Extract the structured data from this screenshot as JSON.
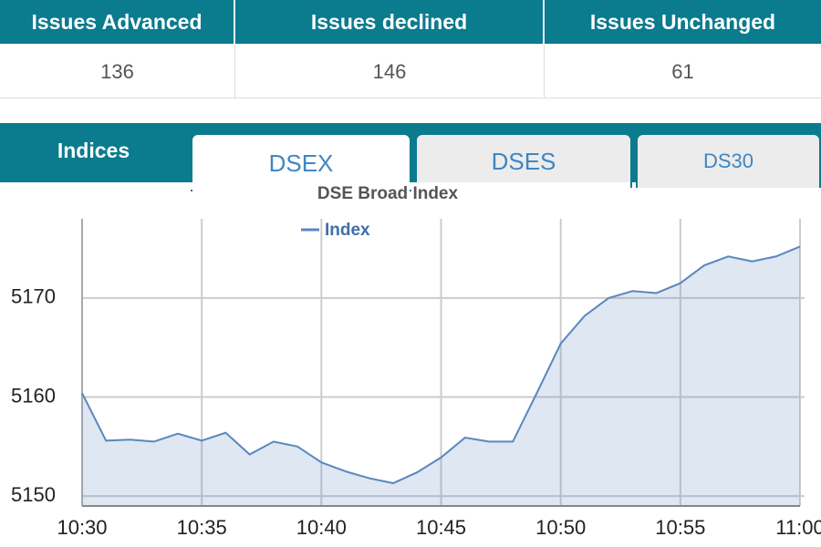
{
  "table": {
    "headers": [
      "Issues Advanced",
      "Issues declined",
      "Issues Unchanged"
    ],
    "values": [
      136,
      146,
      61
    ]
  },
  "tabs": {
    "label": "Indices",
    "items": [
      "DSEX",
      "DSES",
      "DS30"
    ]
  },
  "chart_data": {
    "type": "area",
    "title": "DSE Broad Index",
    "x": [
      "10:30",
      "10:31",
      "10:32",
      "10:33",
      "10:34",
      "10:35",
      "10:36",
      "10:37",
      "10:38",
      "10:39",
      "10:40",
      "10:41",
      "10:42",
      "10:43",
      "10:44",
      "10:45",
      "10:46",
      "10:47",
      "10:48",
      "10:49",
      "10:50",
      "10:51",
      "10:52",
      "10:53",
      "10:54",
      "10:55",
      "10:56",
      "10:57",
      "10:58",
      "10:59",
      "11:00"
    ],
    "series": [
      {
        "name": "Index",
        "color": "#5a87bd",
        "values": [
          5160.4,
          5155.6,
          5155.7,
          5155.5,
          5156.3,
          5155.6,
          5156.4,
          5154.2,
          5155.5,
          5155.0,
          5153.4,
          5152.5,
          5151.8,
          5151.3,
          5152.4,
          5153.9,
          5155.9,
          5155.5,
          5155.5,
          5160.4,
          5165.4,
          5168.2,
          5170.0,
          5170.7,
          5170.5,
          5171.5,
          5173.3,
          5174.2,
          5173.7,
          5174.2,
          5175.2
        ]
      }
    ],
    "xticks": [
      "10:30",
      "10:35",
      "10:40",
      "10:45",
      "10:50",
      "10:55",
      "11:00"
    ],
    "ylim": [
      5149,
      5178
    ],
    "yticks": [
      5150,
      5160,
      5170
    ],
    "grid": true
  }
}
